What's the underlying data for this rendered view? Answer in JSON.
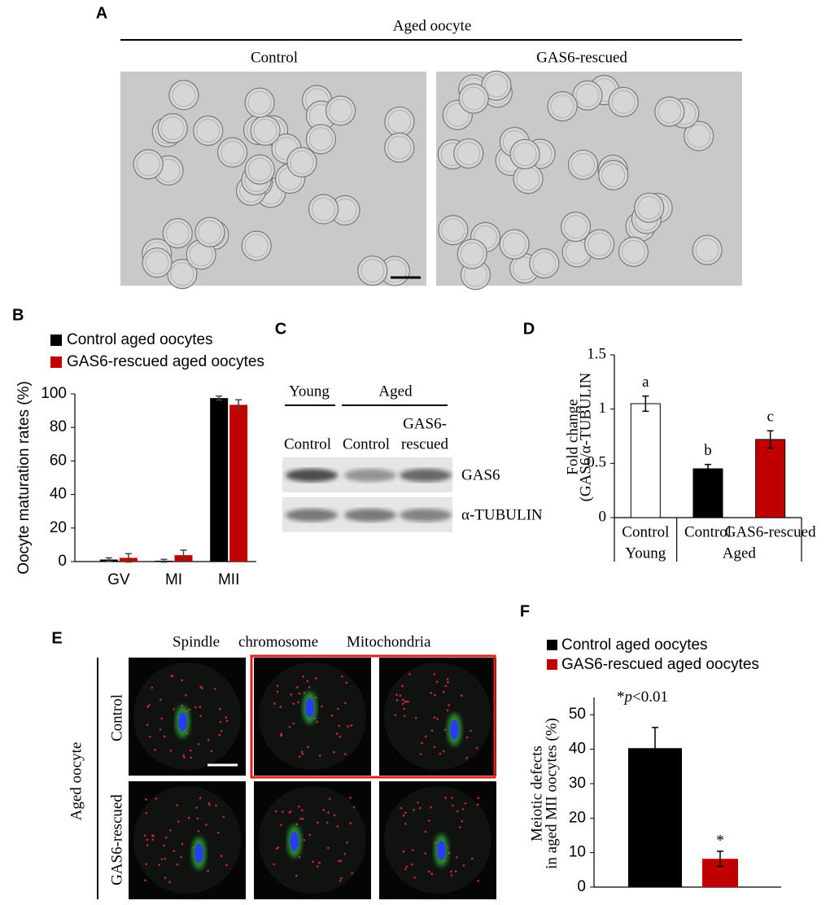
{
  "figure": {
    "A": {
      "label": "A",
      "title": "Aged oocyte",
      "columns": [
        "Control",
        "GAS6-rescued"
      ]
    },
    "C": {
      "label": "C",
      "groups": [
        "Young",
        "Aged"
      ],
      "lanes": [
        "Control",
        "Control",
        [
          "GAS6-",
          "rescued"
        ]
      ],
      "rows": [
        "GAS6",
        "α-TUBULIN"
      ]
    },
    "E": {
      "label": "E",
      "stains": [
        "Spindle",
        "chromosome",
        "Mitochondria"
      ],
      "title": "Aged oocyte",
      "rows": [
        "Control",
        "GAS6-rescued"
      ]
    }
  },
  "chart_data": [
    {
      "type": "bar",
      "panel": "B",
      "categories": [
        "GV",
        "MI",
        "MII"
      ],
      "series": [
        {
          "name": "Control aged oocytes",
          "color": "#000000",
          "values": [
            1.2,
            0.5,
            97.5
          ],
          "errors": [
            1,
            0.8,
            1.2
          ]
        },
        {
          "name": "GAS6-rescued aged oocytes",
          "color": "#c00000",
          "values": [
            2.2,
            3.8,
            93.5
          ],
          "errors": [
            2.5,
            3,
            3
          ]
        }
      ],
      "y_label": "Oocyte maturation rates (%)",
      "ylim": [
        0,
        100
      ],
      "yticks": [
        0,
        20,
        40,
        60,
        80,
        100
      ]
    },
    {
      "type": "bar",
      "panel": "D",
      "categories": [
        "Control",
        "Control",
        "GAS6-rescued"
      ],
      "groups": [
        {
          "label": "Young",
          "count": 1
        },
        {
          "label": "Aged",
          "count": 2
        }
      ],
      "values": [
        1.05,
        0.45,
        0.72
      ],
      "errors": [
        0.07,
        0.04,
        0.08
      ],
      "colors": [
        "#ffffff",
        "#000000",
        "#c00000"
      ],
      "annotations": [
        "a",
        "b",
        "c"
      ],
      "y_label": [
        "Fold change",
        "(GAS6/α-TUBULIN"
      ],
      "ylim": [
        0,
        1.5
      ],
      "yticks": [
        0,
        0.5,
        1,
        1.5
      ]
    },
    {
      "type": "bar",
      "panel": "F",
      "series": [
        {
          "name": "Control aged oocytes",
          "color": "#000000",
          "values": [
            40.3
          ],
          "errors": [
            6
          ]
        },
        {
          "name": "GAS6-rescued aged oocytes",
          "color": "#c00000",
          "values": [
            8.2
          ],
          "errors": [
            2.2
          ],
          "annotation": "*"
        }
      ],
      "annotation": [
        "*",
        "p",
        "<0.01"
      ],
      "y_label": [
        "Meiotic defects",
        "in aged MII oocytes (%)"
      ],
      "ylim": [
        0,
        55
      ],
      "yticks": [
        0,
        10,
        20,
        30,
        40,
        50
      ]
    }
  ]
}
